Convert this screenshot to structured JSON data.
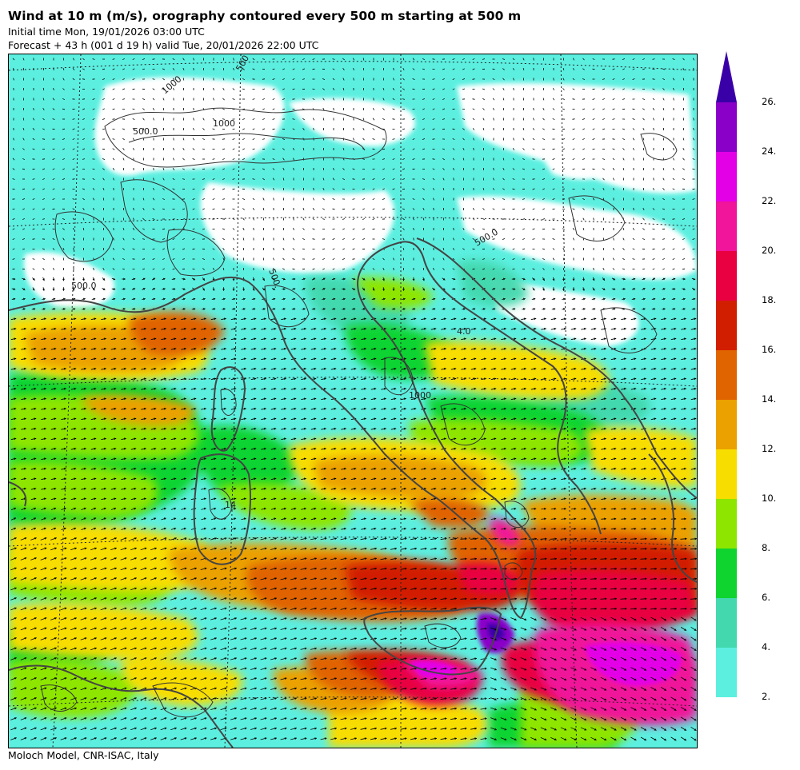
{
  "header": {
    "title": "Wind at 10 m (m/s), orography contoured every 500 m starting at 500 m",
    "initial_time": "Initial time  Mon, 19/01/2026  03:00 UTC",
    "forecast": "Forecast  +  43 h  (001 d 19 h)  valid Tue, 20/01/2026 22:00 UTC"
  },
  "footer": {
    "credit": "Moloch Model, CNR-ISAC, Italy"
  },
  "map": {
    "contour_labels": [
      "500",
      "1000",
      "500.0",
      "500.0",
      "1000",
      "500.",
      "500.0",
      "1000",
      "14",
      "4.0"
    ]
  },
  "legend": {
    "levels": [
      {
        "label": "2.",
        "color": "#5cefe0"
      },
      {
        "label": "4.",
        "color": "#43d8ad"
      },
      {
        "label": "6.",
        "color": "#0fd430"
      },
      {
        "label": "8.",
        "color": "#8ee600"
      },
      {
        "label": "10.",
        "color": "#f8dd00"
      },
      {
        "label": "12.",
        "color": "#eba100"
      },
      {
        "label": "14.",
        "color": "#e06400"
      },
      {
        "label": "16.",
        "color": "#d21e00"
      },
      {
        "label": "18.",
        "color": "#e80040"
      },
      {
        "label": "20.",
        "color": "#f0159a"
      },
      {
        "label": "22.",
        "color": "#e400e6"
      },
      {
        "label": "24.",
        "color": "#8a00c8"
      },
      {
        "label": "26.",
        "color": "#3a00a8"
      }
    ]
  }
}
